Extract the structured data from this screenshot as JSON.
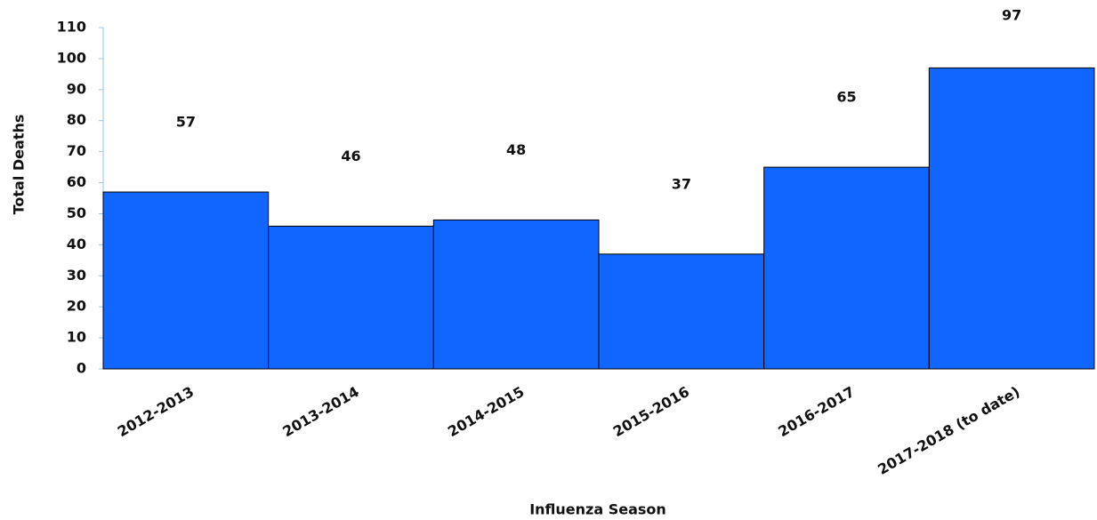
{
  "chart_data": {
    "type": "bar",
    "x_label": "Influenza Season",
    "y_label": "Total Deaths",
    "categories": [
      "2012-2013",
      "2013-2014",
      "2014-2015",
      "2015-2016",
      "2016-2017",
      "2017-2018 (to date)"
    ],
    "values": [
      57,
      46,
      48,
      37,
      65,
      97
    ],
    "color": "#1166ff",
    "ylim": [
      0,
      110
    ],
    "yticks": [
      0,
      10,
      20,
      30,
      40,
      50,
      60,
      70,
      80,
      90,
      100,
      110
    ],
    "grid": false
  }
}
